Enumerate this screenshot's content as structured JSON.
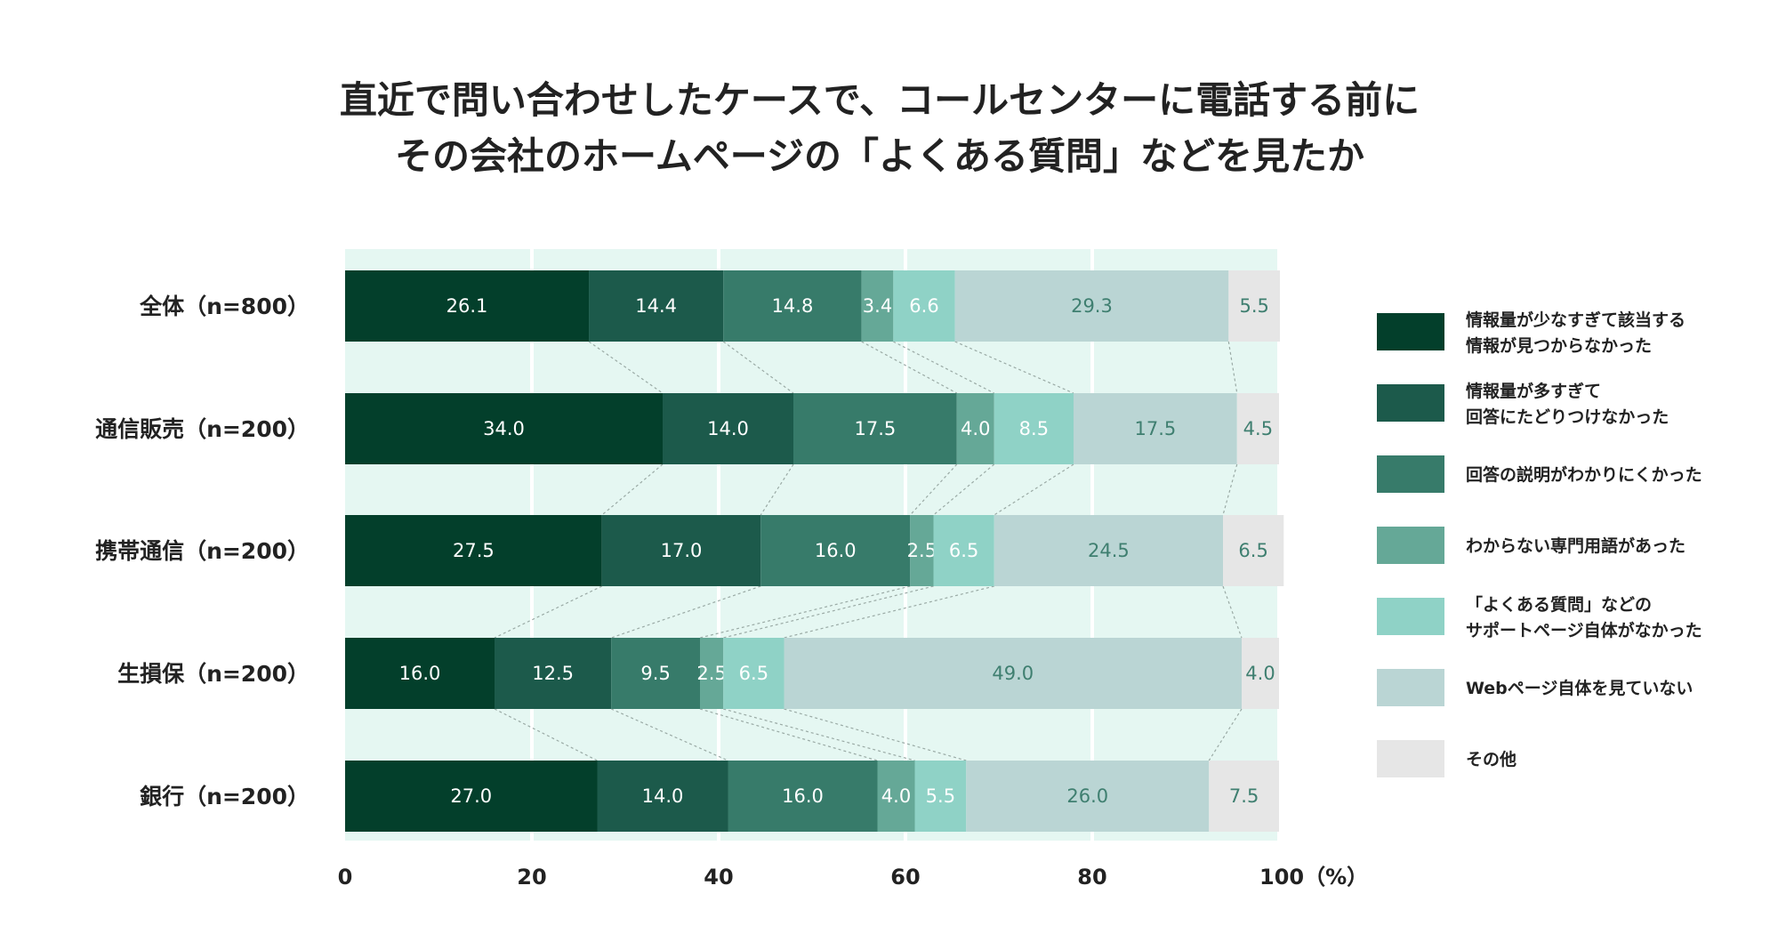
{
  "chart_data": {
    "type": "bar",
    "stacked": true,
    "orientation": "horizontal",
    "title_lines": [
      "直近で問い合わせしたケースで、コールセンターに電話する前に",
      "その会社のホームページの「よくある質問」などを見たか"
    ],
    "categories": [
      "全体（n=800）",
      "通信販売（n=200）",
      "携帯通信（n=200）",
      "生損保（n=200）",
      "銀行（n=200）"
    ],
    "series": [
      {
        "name": "情報量が少なすぎて該当する情報が見つからなかった",
        "legend_lines": [
          "情報量が少なすぎて該当する",
          "情報が見つからなかった"
        ],
        "color": "#033f2b",
        "label_color": "#ffffff",
        "values": [
          26.1,
          34.0,
          27.5,
          16.0,
          27.0
        ]
      },
      {
        "name": "情報量が多すぎて回答にたどりつけなかった",
        "legend_lines": [
          "情報量が多すぎて",
          "回答にたどりつけなかった"
        ],
        "color": "#1c5a4b",
        "label_color": "#ffffff",
        "values": [
          14.4,
          14.0,
          17.0,
          12.5,
          14.0
        ]
      },
      {
        "name": "回答の説明がわかりにくかった",
        "legend_lines": [
          "回答の説明がわかりにくかった"
        ],
        "color": "#377b6a",
        "label_color": "#ffffff",
        "values": [
          14.8,
          17.5,
          16.0,
          9.5,
          16.0
        ]
      },
      {
        "name": "わからない専門用語があった",
        "legend_lines": [
          "わからない専門用語があった"
        ],
        "color": "#65a897",
        "label_color": "#ffffff",
        "values": [
          3.4,
          4.0,
          2.5,
          2.5,
          4.0
        ]
      },
      {
        "name": "「よくある質問」などのサポートページ自体がなかった",
        "legend_lines": [
          "「よくある質問」などの",
          "サポートページ自体がなかった"
        ],
        "color": "#8fd2c6",
        "label_color": "#ffffff",
        "values": [
          6.6,
          8.5,
          6.5,
          6.5,
          5.5
        ]
      },
      {
        "name": "Webページ自体を見ていない",
        "legend_lines": [
          "Webページ自体を見ていない"
        ],
        "color": "#bad5d4",
        "label_color": "#3f7f70",
        "values": [
          29.3,
          17.5,
          24.5,
          49.0,
          26.0
        ]
      },
      {
        "name": "その他",
        "legend_lines": [
          "その他"
        ],
        "color": "#e6e6e6",
        "label_color": "#3f7f70",
        "values": [
          5.5,
          4.5,
          6.5,
          4.0,
          7.5
        ]
      }
    ],
    "x_ticks": [
      "0",
      "20",
      "40",
      "60",
      "80",
      "100（%）"
    ],
    "xlim": [
      0,
      100
    ],
    "unit": "%",
    "grid": true,
    "plot_background": "#e5f7f2",
    "connector_lines": true,
    "legend_position": "right"
  }
}
